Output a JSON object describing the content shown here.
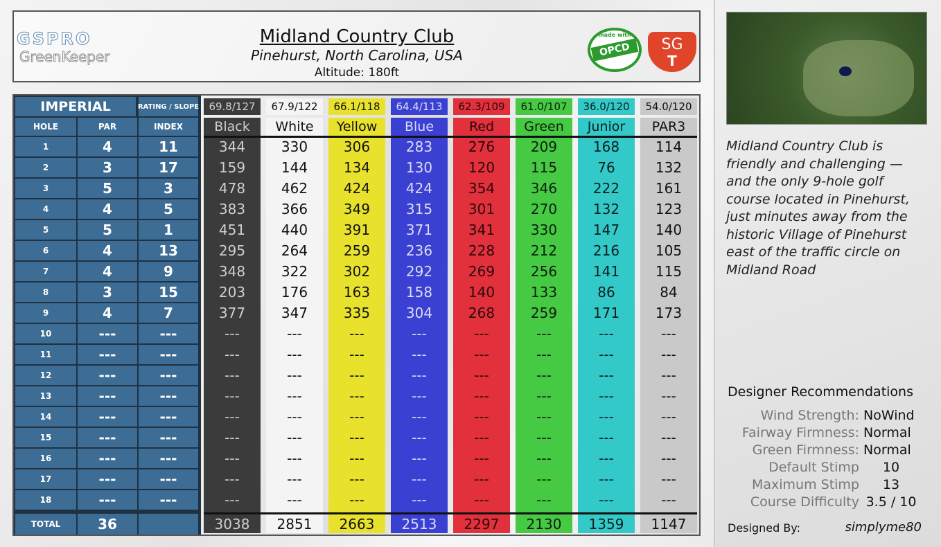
{
  "header": {
    "logo_top": "GSPRO",
    "logo_bottom": "GreenKeeper",
    "title": "Midland Country Club",
    "location": "Pinehurst, North Carolina, USA",
    "altitude": "Altitude: 180ft",
    "badge_top": "made with",
    "badge": "OPCD",
    "sgt_top": "SG",
    "sgt_bottom": "T"
  },
  "table": {
    "unit": "IMPERIAL",
    "rating_header": "RATING / SLOPE",
    "hole_header": "HOLE",
    "par_header": "PAR",
    "index_header": "INDEX",
    "total_label": "TOTAL",
    "par_total": 36,
    "holes": [
      1,
      2,
      3,
      4,
      5,
      6,
      7,
      8,
      9,
      10,
      11,
      12,
      13,
      14,
      15,
      16,
      17,
      18
    ],
    "par": [
      4,
      3,
      5,
      4,
      5,
      4,
      4,
      3,
      4,
      "---",
      "---",
      "---",
      "---",
      "---",
      "---",
      "---",
      "---",
      "---"
    ],
    "index": [
      11,
      17,
      3,
      5,
      1,
      13,
      9,
      15,
      7,
      "---",
      "---",
      "---",
      "---",
      "---",
      "---",
      "---",
      "---",
      "---"
    ],
    "tees": [
      {
        "name": "Black",
        "rating": "69.8/127",
        "color": "#3b3b3b",
        "text_color": "#cfcfcf",
        "yards": [
          344,
          159,
          478,
          383,
          451,
          295,
          348,
          203,
          377,
          "---",
          "---",
          "---",
          "---",
          "---",
          "---",
          "---",
          "---",
          "---"
        ],
        "total": 3038
      },
      {
        "name": "White",
        "rating": "67.9/122",
        "color": "#f4f4f4",
        "text_color": "#111111",
        "yards": [
          330,
          144,
          462,
          366,
          440,
          264,
          322,
          176,
          347,
          "---",
          "---",
          "---",
          "---",
          "---",
          "---",
          "---",
          "---",
          "---"
        ],
        "total": 2851
      },
      {
        "name": "Yellow",
        "rating": "66.1/118",
        "color": "#e9e22c",
        "text_color": "#111111",
        "yards": [
          306,
          134,
          424,
          349,
          391,
          259,
          302,
          163,
          335,
          "---",
          "---",
          "---",
          "---",
          "---",
          "---",
          "---",
          "---",
          "---"
        ],
        "total": 2663
      },
      {
        "name": "Blue",
        "rating": "64.4/113",
        "color": "#3a40d2",
        "text_color": "#dcdcf4",
        "yards": [
          283,
          130,
          424,
          315,
          371,
          236,
          292,
          158,
          304,
          "---",
          "---",
          "---",
          "---",
          "---",
          "---",
          "---",
          "---",
          "---"
        ],
        "total": 2513
      },
      {
        "name": "Red",
        "rating": "62.3/109",
        "color": "#e2303c",
        "text_color": "#2a0a0a",
        "yards": [
          276,
          120,
          354,
          301,
          341,
          228,
          269,
          140,
          268,
          "---",
          "---",
          "---",
          "---",
          "---",
          "---",
          "---",
          "---",
          "---"
        ],
        "total": 2297
      },
      {
        "name": "Green",
        "rating": "61.0/107",
        "color": "#46c943",
        "text_color": "#0e1e0e",
        "yards": [
          209,
          115,
          346,
          270,
          330,
          212,
          256,
          133,
          259,
          "---",
          "---",
          "---",
          "---",
          "---",
          "---",
          "---",
          "---",
          "---"
        ],
        "total": 2130
      },
      {
        "name": "Junior",
        "rating": "36.0/120",
        "color": "#33c9c9",
        "text_color": "#0e1e1e",
        "yards": [
          168,
          76,
          222,
          132,
          147,
          216,
          141,
          86,
          171,
          "---",
          "---",
          "---",
          "---",
          "---",
          "---",
          "---",
          "---",
          "---"
        ],
        "total": 1359
      },
      {
        "name": "PAR3",
        "rating": "54.0/120",
        "color": "#c9c9c9",
        "text_color": "#111111",
        "yards": [
          114,
          132,
          161,
          123,
          140,
          105,
          115,
          84,
          173,
          "---",
          "---",
          "---",
          "---",
          "---",
          "---",
          "---",
          "---",
          "---"
        ],
        "total": 1147
      }
    ]
  },
  "description": "Midland Country Club is friendly and challenging — and the only 9-hole golf course located in Pinehurst, just minutes away from the historic Village of Pinehurst east of the traffic circle on Midland Road",
  "recommendations": {
    "title": "Designer Recommendations",
    "items": [
      {
        "label": "Wind Strength:",
        "value": "NoWind"
      },
      {
        "label": "Fairway Firmness:",
        "value": "Normal"
      },
      {
        "label": "Green Firmness:",
        "value": "Normal"
      },
      {
        "label": "Default Stimp",
        "value": "10"
      },
      {
        "label": "Maximum Stimp",
        "value": "13"
      },
      {
        "label": "Course Difficulty",
        "value": "3.5 / 10"
      }
    ],
    "designed_by_label": "Designed By:",
    "designer": "simplyme80"
  }
}
